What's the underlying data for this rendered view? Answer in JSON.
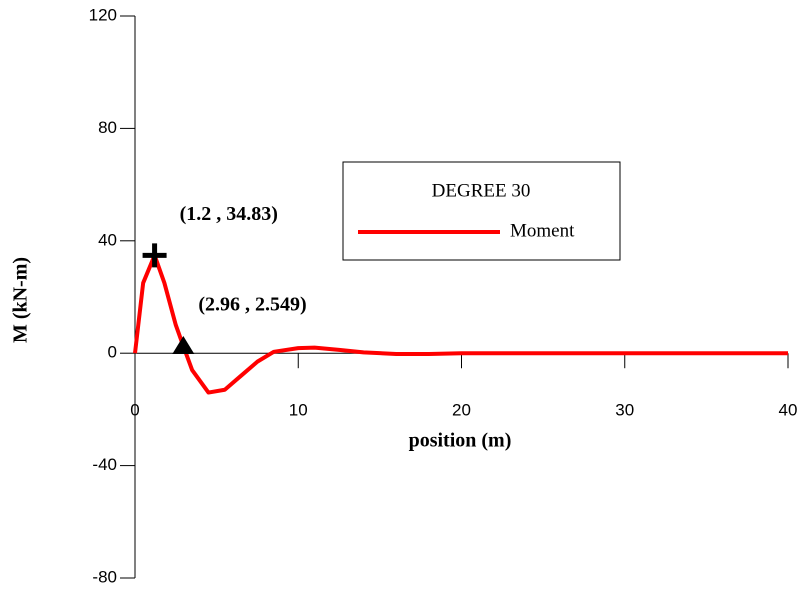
{
  "chart_data": {
    "type": "line",
    "x_label": "position (m)",
    "y_label": "M (kN-m)",
    "xlim": [
      0,
      40
    ],
    "xticks": [
      0,
      10,
      20,
      30,
      40
    ],
    "ylim": [
      -80,
      120
    ],
    "yticks": [
      -80,
      -40,
      0,
      40,
      80,
      120
    ],
    "legend_title": "DEGREE 30",
    "x": [
      0,
      0.5,
      1.2,
      1.8,
      2.5,
      2.96,
      3.5,
      4.5,
      5.5,
      6.5,
      7.5,
      8.5,
      10,
      11,
      12.5,
      14,
      16,
      18,
      20,
      25,
      30,
      35,
      40
    ],
    "series": [
      {
        "name": "Moment",
        "color": "#ff0000",
        "values": [
          0,
          25,
          34.83,
          25,
          10,
          2.549,
          -6,
          -14,
          -13,
          -8,
          -3,
          0.5,
          1.8,
          2,
          1.2,
          0.3,
          -0.3,
          -0.3,
          0,
          0,
          0,
          0,
          0
        ]
      }
    ],
    "annotations": [
      {
        "x": 1.2,
        "y": 34.83,
        "label": "(1.2 , 34.83)",
        "marker": "plus"
      },
      {
        "x": 2.96,
        "y": 2.549,
        "label": "(2.96 , 2.549)",
        "marker": "triangle"
      }
    ]
  }
}
